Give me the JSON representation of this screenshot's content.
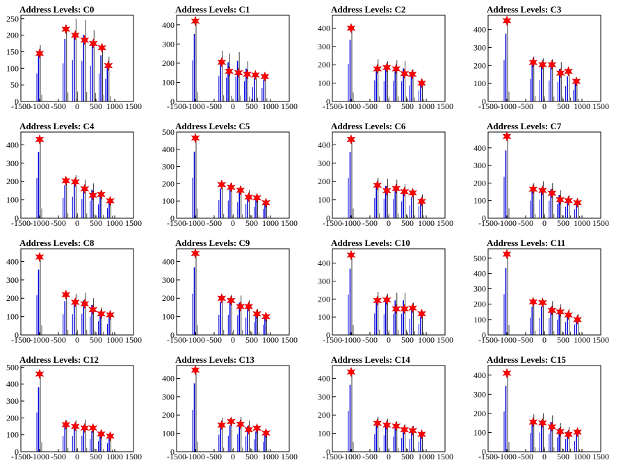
{
  "x_ticks": [
    -1500,
    -1000,
    -500,
    0,
    500,
    1000,
    1500
  ],
  "colors": {
    "histogram": "#0000dd",
    "outline": "#000000",
    "marker": "#ff0000",
    "marker_edge": "#cc0000"
  },
  "chart_data": [
    {
      "type": "bar",
      "title": "Address Levels: C0",
      "xlim": [
        -1500,
        1500
      ],
      "ylim": [
        0,
        260
      ],
      "yticks": [
        0,
        50,
        100,
        150,
        200,
        250
      ],
      "peaks": [
        {
          "x": -1000,
          "y": 145
        },
        {
          "x": -300,
          "y": 218
        },
        {
          "x": -50,
          "y": 200
        },
        {
          "x": 200,
          "y": 185
        },
        {
          "x": 430,
          "y": 175
        },
        {
          "x": 660,
          "y": 162
        },
        {
          "x": 830,
          "y": 108
        }
      ],
      "bars": [
        {
          "x": -1000,
          "h": 170
        },
        {
          "x": -300,
          "h": 230
        },
        {
          "x": -50,
          "h": 250
        },
        {
          "x": 200,
          "h": 245
        },
        {
          "x": 430,
          "h": 215
        },
        {
          "x": 660,
          "h": 170
        },
        {
          "x": 830,
          "h": 135
        }
      ]
    },
    {
      "type": "bar",
      "title": "Address Levels: C1",
      "xlim": [
        -1500,
        1500
      ],
      "ylim": [
        0,
        450
      ],
      "yticks": [
        0,
        100,
        200,
        300,
        400
      ],
      "peaks": [
        {
          "x": -1000,
          "y": 420
        },
        {
          "x": -300,
          "y": 205
        },
        {
          "x": -100,
          "y": 158
        },
        {
          "x": 150,
          "y": 150
        },
        {
          "x": 380,
          "y": 142
        },
        {
          "x": 600,
          "y": 138
        },
        {
          "x": 850,
          "y": 130
        }
      ],
      "bars": [
        {
          "x": -1000,
          "h": 430
        },
        {
          "x": -300,
          "h": 265
        },
        {
          "x": -100,
          "h": 250
        },
        {
          "x": 150,
          "h": 258
        },
        {
          "x": 380,
          "h": 210
        },
        {
          "x": 600,
          "h": 150
        },
        {
          "x": 850,
          "h": 140
        }
      ]
    },
    {
      "type": "bar",
      "title": "Address Levels: C2",
      "xlim": [
        -1500,
        1500
      ],
      "ylim": [
        0,
        470
      ],
      "yticks": [
        0,
        100,
        200,
        300,
        400
      ],
      "peaks": [
        {
          "x": -1000,
          "y": 400
        },
        {
          "x": -300,
          "y": 178
        },
        {
          "x": -50,
          "y": 185
        },
        {
          "x": 200,
          "y": 178
        },
        {
          "x": 420,
          "y": 152
        },
        {
          "x": 630,
          "y": 148
        },
        {
          "x": 880,
          "y": 100
        }
      ],
      "bars": [
        {
          "x": -1000,
          "h": 410
        },
        {
          "x": -300,
          "h": 230
        },
        {
          "x": -50,
          "h": 220
        },
        {
          "x": 200,
          "h": 225
        },
        {
          "x": 420,
          "h": 220
        },
        {
          "x": 630,
          "h": 175
        },
        {
          "x": 880,
          "h": 120
        }
      ]
    },
    {
      "type": "bar",
      "title": "Address Levels: C3",
      "xlim": [
        -1500,
        1500
      ],
      "ylim": [
        0,
        480
      ],
      "yticks": [
        0,
        100,
        200,
        300,
        400
      ],
      "peaks": [
        {
          "x": -1000,
          "y": 450
        },
        {
          "x": -300,
          "y": 218
        },
        {
          "x": -50,
          "y": 205
        },
        {
          "x": 200,
          "y": 205
        },
        {
          "x": 430,
          "y": 158
        },
        {
          "x": 640,
          "y": 168
        },
        {
          "x": 850,
          "y": 112
        }
      ],
      "bars": [
        {
          "x": -1000,
          "h": 460
        },
        {
          "x": -300,
          "h": 250
        },
        {
          "x": -50,
          "h": 240
        },
        {
          "x": 200,
          "h": 235
        },
        {
          "x": 430,
          "h": 220
        },
        {
          "x": 640,
          "h": 170
        },
        {
          "x": 850,
          "h": 125
        }
      ]
    },
    {
      "type": "bar",
      "title": "Address Levels: C4",
      "xlim": [
        -1500,
        1500
      ],
      "ylim": [
        0,
        470
      ],
      "yticks": [
        0,
        100,
        200,
        300,
        400
      ],
      "peaks": [
        {
          "x": -1000,
          "y": 430
        },
        {
          "x": -300,
          "y": 205
        },
        {
          "x": -50,
          "y": 198
        },
        {
          "x": 200,
          "y": 160
        },
        {
          "x": 420,
          "y": 125
        },
        {
          "x": 640,
          "y": 130
        },
        {
          "x": 880,
          "y": 95
        }
      ],
      "bars": [
        {
          "x": -1000,
          "h": 440
        },
        {
          "x": -300,
          "h": 220
        },
        {
          "x": -50,
          "h": 235
        },
        {
          "x": 200,
          "h": 210
        },
        {
          "x": 420,
          "h": 190
        },
        {
          "x": 640,
          "h": 150
        },
        {
          "x": 880,
          "h": 110
        }
      ]
    },
    {
      "type": "bar",
      "title": "Address Levels: C5",
      "xlim": [
        -1500,
        1500
      ],
      "ylim": [
        0,
        500
      ],
      "yticks": [
        0,
        100,
        200,
        300,
        400,
        500
      ],
      "peaks": [
        {
          "x": -1000,
          "y": 465
        },
        {
          "x": -300,
          "y": 195
        },
        {
          "x": -50,
          "y": 180
        },
        {
          "x": 200,
          "y": 162
        },
        {
          "x": 420,
          "y": 122
        },
        {
          "x": 640,
          "y": 118
        },
        {
          "x": 880,
          "y": 90
        }
      ],
      "bars": [
        {
          "x": -1000,
          "h": 470
        },
        {
          "x": -300,
          "h": 210
        },
        {
          "x": -50,
          "h": 205
        },
        {
          "x": 200,
          "h": 185
        },
        {
          "x": 420,
          "h": 165
        },
        {
          "x": 640,
          "h": 130
        },
        {
          "x": 880,
          "h": 105
        }
      ]
    },
    {
      "type": "bar",
      "title": "Address Levels: C6",
      "xlim": [
        -1500,
        1500
      ],
      "ylim": [
        0,
        470
      ],
      "yticks": [
        0,
        100,
        200,
        300,
        400
      ],
      "peaks": [
        {
          "x": -1000,
          "y": 430
        },
        {
          "x": -300,
          "y": 180
        },
        {
          "x": -50,
          "y": 150
        },
        {
          "x": 200,
          "y": 162
        },
        {
          "x": 420,
          "y": 145
        },
        {
          "x": 640,
          "y": 138
        },
        {
          "x": 880,
          "y": 92
        }
      ],
      "bars": [
        {
          "x": -1000,
          "h": 440
        },
        {
          "x": -300,
          "h": 220
        },
        {
          "x": -50,
          "h": 215
        },
        {
          "x": 200,
          "h": 210
        },
        {
          "x": 420,
          "h": 185
        },
        {
          "x": 640,
          "h": 140
        },
        {
          "x": 880,
          "h": 130
        }
      ]
    },
    {
      "type": "bar",
      "title": "Address Levels: C7",
      "xlim": [
        -1500,
        1500
      ],
      "ylim": [
        0,
        490
      ],
      "yticks": [
        0,
        100,
        200,
        300,
        400
      ],
      "peaks": [
        {
          "x": -1000,
          "y": 465
        },
        {
          "x": -300,
          "y": 165
        },
        {
          "x": -50,
          "y": 158
        },
        {
          "x": 200,
          "y": 142
        },
        {
          "x": 420,
          "y": 105
        },
        {
          "x": 640,
          "y": 100
        },
        {
          "x": 880,
          "y": 88
        }
      ],
      "bars": [
        {
          "x": -1000,
          "h": 470
        },
        {
          "x": -300,
          "h": 200
        },
        {
          "x": -50,
          "h": 210
        },
        {
          "x": 200,
          "h": 200
        },
        {
          "x": 420,
          "h": 160
        },
        {
          "x": 640,
          "h": 130
        },
        {
          "x": 880,
          "h": 100
        }
      ]
    },
    {
      "type": "bar",
      "title": "Address Levels: C8",
      "xlim": [
        -1500,
        1500
      ],
      "ylim": [
        0,
        470
      ],
      "yticks": [
        0,
        100,
        200,
        300,
        400
      ],
      "peaks": [
        {
          "x": -1000,
          "y": 425
        },
        {
          "x": -300,
          "y": 220
        },
        {
          "x": -50,
          "y": 178
        },
        {
          "x": 200,
          "y": 170
        },
        {
          "x": 420,
          "y": 138
        },
        {
          "x": 640,
          "y": 115
        },
        {
          "x": 880,
          "y": 110
        }
      ],
      "bars": [
        {
          "x": -1000,
          "h": 435
        },
        {
          "x": -300,
          "h": 225
        },
        {
          "x": -50,
          "h": 225
        },
        {
          "x": 200,
          "h": 230
        },
        {
          "x": 420,
          "h": 200
        },
        {
          "x": 640,
          "h": 150
        },
        {
          "x": 880,
          "h": 120
        }
      ]
    },
    {
      "type": "bar",
      "title": "Address Levels: C9",
      "xlim": [
        -1500,
        1500
      ],
      "ylim": [
        0,
        470
      ],
      "yticks": [
        0,
        100,
        200,
        300,
        400
      ],
      "peaks": [
        {
          "x": -1000,
          "y": 445
        },
        {
          "x": -300,
          "y": 200
        },
        {
          "x": -50,
          "y": 188
        },
        {
          "x": 200,
          "y": 155
        },
        {
          "x": 420,
          "y": 155
        },
        {
          "x": 640,
          "y": 115
        },
        {
          "x": 880,
          "y": 100
        }
      ],
      "bars": [
        {
          "x": -1000,
          "h": 450
        },
        {
          "x": -300,
          "h": 220
        },
        {
          "x": -50,
          "h": 220
        },
        {
          "x": 200,
          "h": 215
        },
        {
          "x": 420,
          "h": 190
        },
        {
          "x": 640,
          "h": 140
        },
        {
          "x": 880,
          "h": 110
        }
      ]
    },
    {
      "type": "bar",
      "title": "Address Levels: C10",
      "xlim": [
        -1500,
        1500
      ],
      "ylim": [
        0,
        480
      ],
      "yticks": [
        0,
        100,
        200,
        300,
        400
      ],
      "peaks": [
        {
          "x": -1000,
          "y": 445
        },
        {
          "x": -300,
          "y": 192
        },
        {
          "x": -50,
          "y": 195
        },
        {
          "x": 200,
          "y": 145
        },
        {
          "x": 420,
          "y": 145
        },
        {
          "x": 640,
          "y": 150
        },
        {
          "x": 880,
          "y": 118
        }
      ],
      "bars": [
        {
          "x": -1000,
          "h": 450
        },
        {
          "x": -300,
          "h": 240
        },
        {
          "x": -50,
          "h": 230
        },
        {
          "x": 200,
          "h": 235
        },
        {
          "x": 420,
          "h": 235
        },
        {
          "x": 640,
          "h": 180
        },
        {
          "x": 880,
          "h": 125
        }
      ]
    },
    {
      "type": "bar",
      "title": "Address Levels: C11",
      "xlim": [
        -1500,
        1500
      ],
      "ylim": [
        0,
        560
      ],
      "yticks": [
        0,
        100,
        200,
        300,
        400,
        500
      ],
      "peaks": [
        {
          "x": -1000,
          "y": 525
        },
        {
          "x": -300,
          "y": 215
        },
        {
          "x": -50,
          "y": 210
        },
        {
          "x": 200,
          "y": 160
        },
        {
          "x": 420,
          "y": 150
        },
        {
          "x": 640,
          "y": 130
        },
        {
          "x": 880,
          "y": 100
        }
      ],
      "bars": [
        {
          "x": -1000,
          "h": 530
        },
        {
          "x": -300,
          "h": 225
        },
        {
          "x": -50,
          "h": 225
        },
        {
          "x": 200,
          "h": 220
        },
        {
          "x": 420,
          "h": 200
        },
        {
          "x": 640,
          "h": 170
        },
        {
          "x": 880,
          "h": 135
        }
      ]
    },
    {
      "type": "bar",
      "title": "Address Levels: C12",
      "xlim": [
        -1500,
        1500
      ],
      "ylim": [
        0,
        510
      ],
      "yticks": [
        0,
        100,
        200,
        300,
        400,
        500
      ],
      "peaks": [
        {
          "x": -1000,
          "y": 460
        },
        {
          "x": -300,
          "y": 160
        },
        {
          "x": -50,
          "y": 150
        },
        {
          "x": 200,
          "y": 140
        },
        {
          "x": 420,
          "y": 140
        },
        {
          "x": 640,
          "y": 105
        },
        {
          "x": 880,
          "y": 92
        }
      ],
      "bars": [
        {
          "x": -1000,
          "h": 465
        },
        {
          "x": -300,
          "h": 185
        },
        {
          "x": -50,
          "h": 185
        },
        {
          "x": 200,
          "h": 190
        },
        {
          "x": 420,
          "h": 150
        },
        {
          "x": 640,
          "h": 125
        },
        {
          "x": 880,
          "h": 100
        }
      ]
    },
    {
      "type": "bar",
      "title": "Address Levels: C13",
      "xlim": [
        -1500,
        1500
      ],
      "ylim": [
        0,
        470
      ],
      "yticks": [
        0,
        100,
        200,
        300,
        400
      ],
      "peaks": [
        {
          "x": -1000,
          "y": 445
        },
        {
          "x": -300,
          "y": 145
        },
        {
          "x": -50,
          "y": 165
        },
        {
          "x": 200,
          "y": 150
        },
        {
          "x": 420,
          "y": 120
        },
        {
          "x": 640,
          "y": 128
        },
        {
          "x": 880,
          "y": 102
        }
      ],
      "bars": [
        {
          "x": -1000,
          "h": 455
        },
        {
          "x": -300,
          "h": 185
        },
        {
          "x": -50,
          "h": 175
        },
        {
          "x": 200,
          "h": 190
        },
        {
          "x": 420,
          "h": 170
        },
        {
          "x": 640,
          "h": 135
        },
        {
          "x": 880,
          "h": 110
        }
      ]
    },
    {
      "type": "bar",
      "title": "Address Levels: C14",
      "xlim": [
        -1500,
        1500
      ],
      "ylim": [
        0,
        470
      ],
      "yticks": [
        0,
        100,
        200,
        300,
        400
      ],
      "peaks": [
        {
          "x": -1000,
          "y": 435
        },
        {
          "x": -300,
          "y": 155
        },
        {
          "x": -50,
          "y": 145
        },
        {
          "x": 200,
          "y": 140
        },
        {
          "x": 420,
          "y": 120
        },
        {
          "x": 640,
          "y": 115
        },
        {
          "x": 880,
          "y": 95
        }
      ],
      "bars": [
        {
          "x": -1000,
          "h": 445
        },
        {
          "x": -300,
          "h": 190
        },
        {
          "x": -50,
          "h": 180
        },
        {
          "x": 200,
          "h": 165
        },
        {
          "x": 420,
          "h": 150
        },
        {
          "x": 640,
          "h": 140
        },
        {
          "x": 880,
          "h": 110
        }
      ]
    },
    {
      "type": "bar",
      "title": "Address Levels: C15",
      "xlim": [
        -1500,
        1500
      ],
      "ylim": [
        0,
        450
      ],
      "yticks": [
        0,
        100,
        200,
        300,
        400
      ],
      "peaks": [
        {
          "x": -1000,
          "y": 410
        },
        {
          "x": -300,
          "y": 155
        },
        {
          "x": -50,
          "y": 150
        },
        {
          "x": 200,
          "y": 130
        },
        {
          "x": 420,
          "y": 105
        },
        {
          "x": 640,
          "y": 90
        },
        {
          "x": 880,
          "y": 102
        }
      ],
      "bars": [
        {
          "x": -1000,
          "h": 420
        },
        {
          "x": -300,
          "h": 195
        },
        {
          "x": -50,
          "h": 200
        },
        {
          "x": 200,
          "h": 190
        },
        {
          "x": 420,
          "h": 150
        },
        {
          "x": 640,
          "h": 130
        },
        {
          "x": 880,
          "h": 110
        }
      ]
    }
  ]
}
